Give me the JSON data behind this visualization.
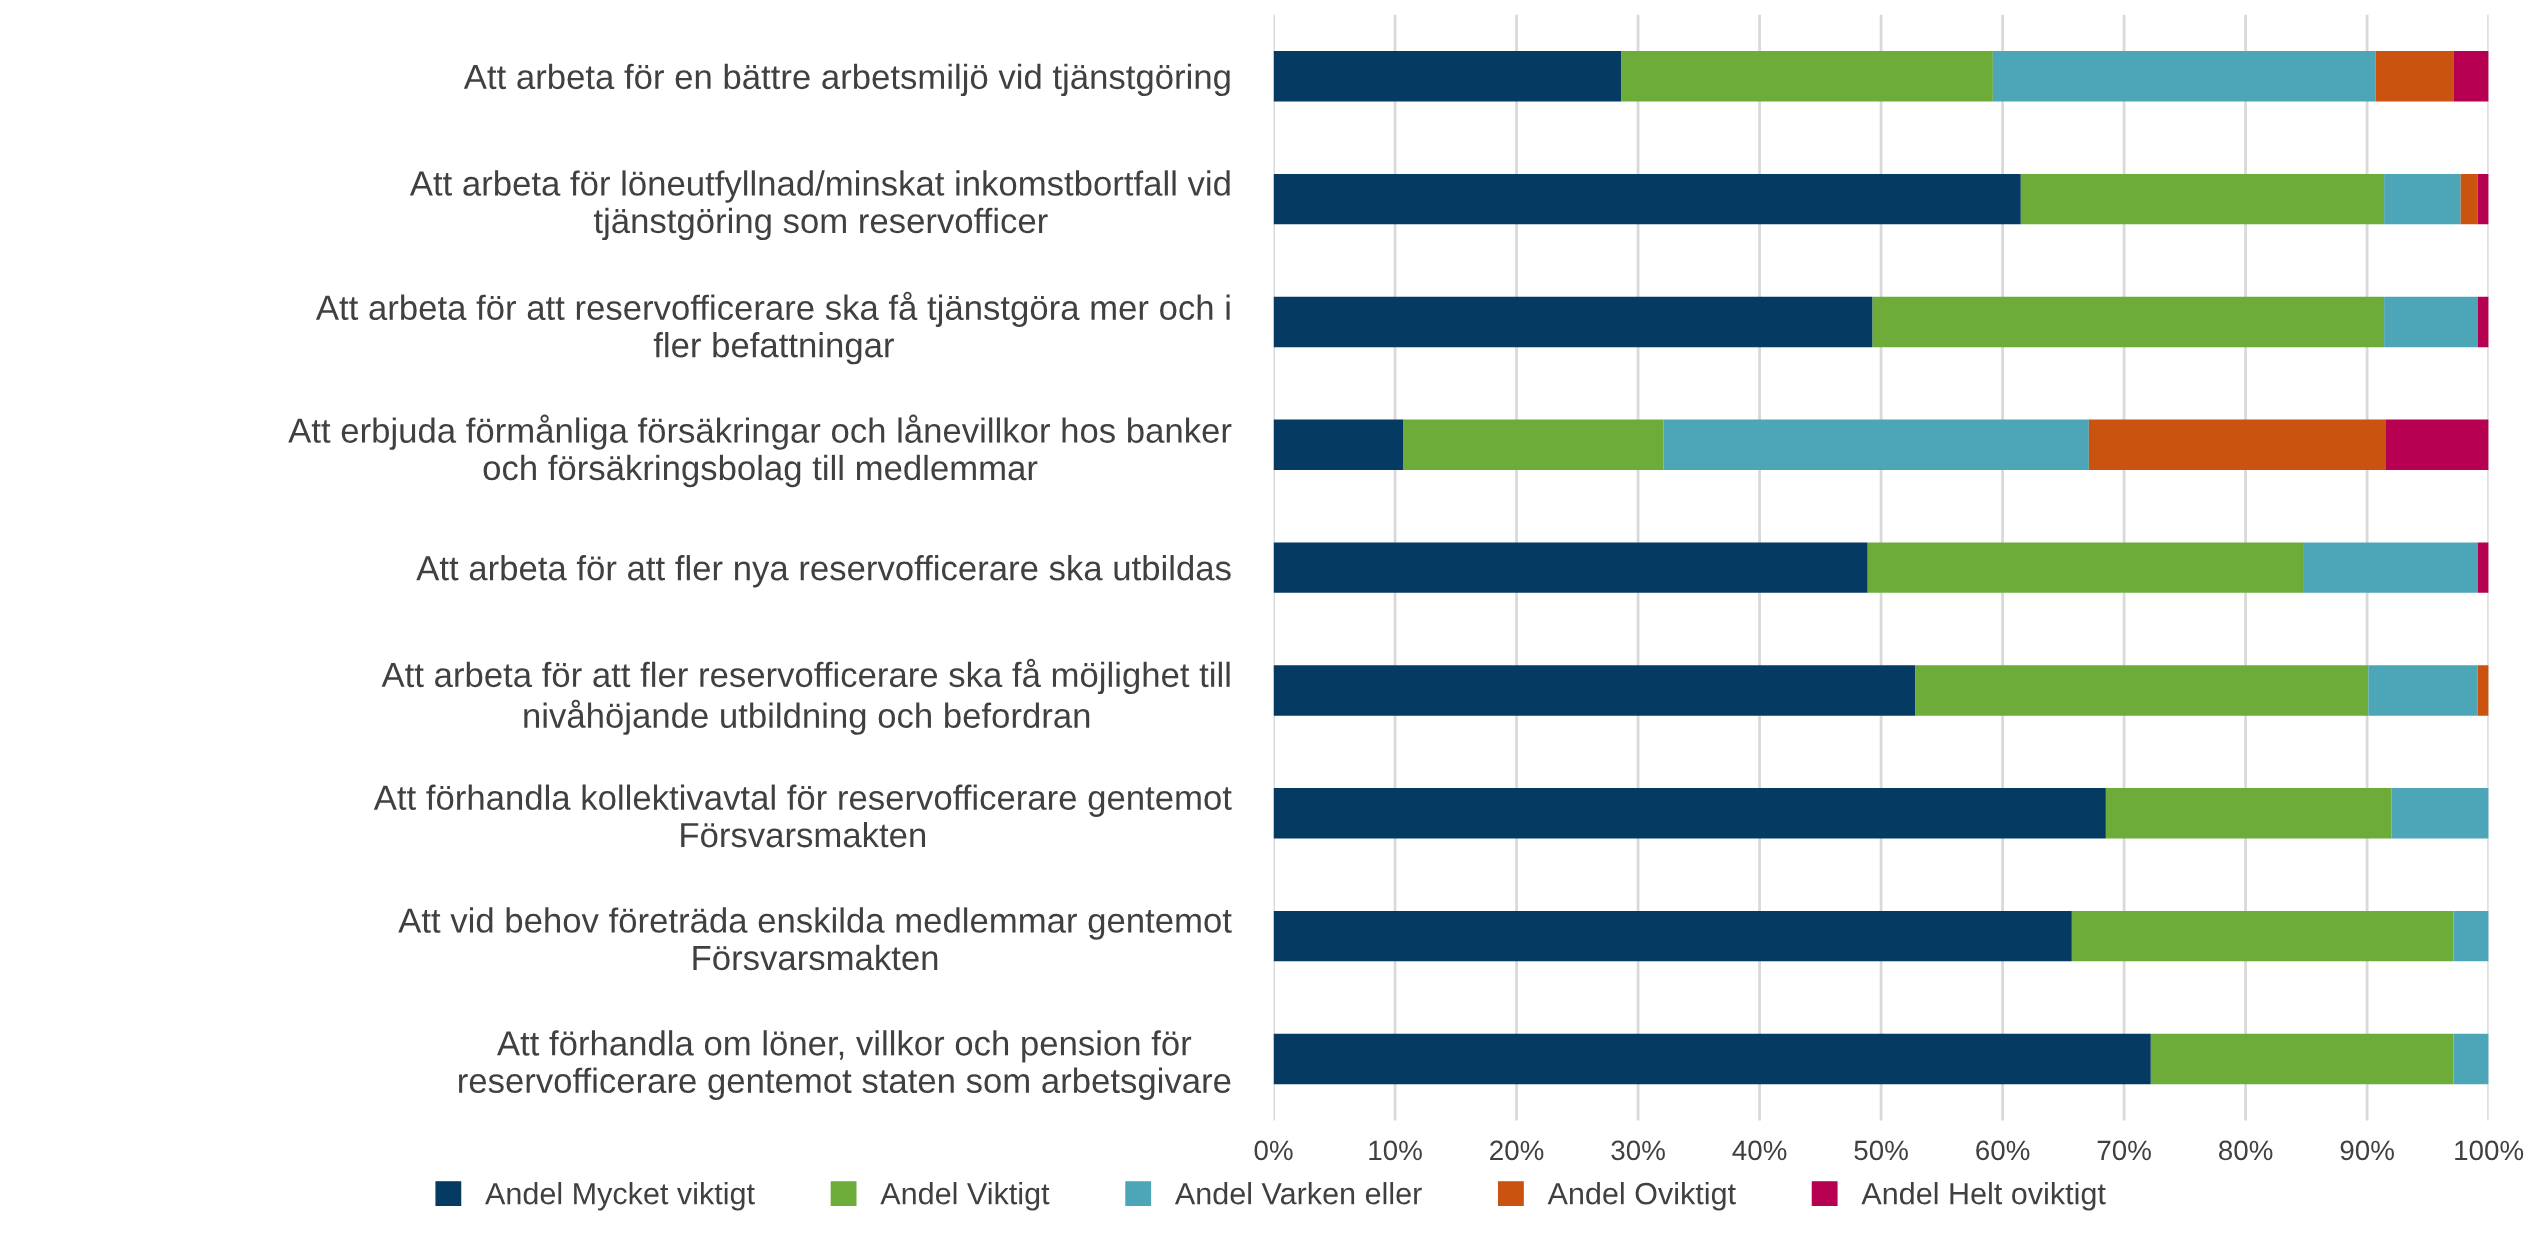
{
  "chart_data": {
    "type": "bar",
    "orientation": "horizontal",
    "stacked": true,
    "categories": [
      "Att arbeta för en bättre arbetsmiljö vid tjänstgöring",
      "Att arbeta för löneutfyllnad/minskat inkomstbortfall vid\ntjänstgöring som reservofficer",
      "Att arbeta för att reservofficerare ska få tjänstgöra mer och i\nfler befattningar",
      "Att erbjuda förmånliga försäkringar och lånevillkor hos banker\noch försäkringsbolag till medlemmar",
      "Att arbeta för att fler nya reservofficerare ska utbildas",
      "Att arbeta för att fler reservofficerare ska få möjlighet till\nnivåhöjande utbildning och befordran",
      "Att förhandla kollektivavtal för reservofficerare gentemot\nFörsvarsmakten",
      "Att vid behov företräda enskilda medlemmar gentemot\nFörsvarsmakten",
      "Att förhandla om löner, villkor och pension för\nreservofficerare gentemot staten som arbetsgivare"
    ],
    "series": [
      {
        "name": "Andel Mycket viktigt",
        "color": "#053a63",
        "values": [
          28.6,
          61.5,
          49.3,
          10.7,
          48.9,
          52.8,
          68.5,
          65.7,
          72.2
        ]
      },
      {
        "name": "Andel Viktigt",
        "color": "#6eac3a",
        "values": [
          30.6,
          29.9,
          42.1,
          21.4,
          35.9,
          37.3,
          23.5,
          31.4,
          24.9
        ]
      },
      {
        "name": "Andel Varken eller",
        "color": "#4da6b8",
        "values": [
          31.5,
          6.3,
          7.7,
          35.0,
          14.3,
          9.0,
          8.0,
          2.9,
          2.9
        ]
      },
      {
        "name": "Andel Oviktigt",
        "color": "#c9530f",
        "values": [
          6.4,
          1.4,
          0,
          24.4,
          0,
          0.9,
          0,
          0,
          0
        ]
      },
      {
        "name": "Andel Helt oviktigt",
        "color": "#b80053",
        "values": [
          2.9,
          0.9,
          0.9,
          8.5,
          0.9,
          0,
          0,
          0,
          0
        ]
      }
    ],
    "xlim": [
      0,
      100
    ],
    "xticks": [
      {
        "value": 0,
        "label": "0%"
      },
      {
        "value": 10,
        "label": "10%"
      },
      {
        "value": 20,
        "label": "20%"
      },
      {
        "value": 30,
        "label": "30%"
      },
      {
        "value": 40,
        "label": "40%"
      },
      {
        "value": 50,
        "label": "50%"
      },
      {
        "value": 60,
        "label": "60%"
      },
      {
        "value": 70,
        "label": "70%"
      },
      {
        "value": 80,
        "label": "80%"
      },
      {
        "value": 90,
        "label": "90%"
      },
      {
        "value": 100,
        "label": "100%"
      }
    ],
    "grid": "x",
    "legend": "bottom"
  }
}
